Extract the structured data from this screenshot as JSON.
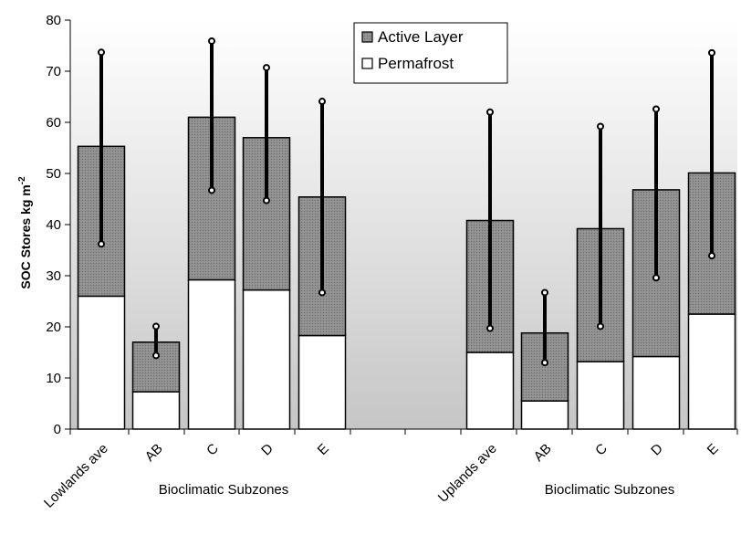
{
  "chart_data": {
    "type": "bar",
    "stacked": true,
    "ylabel": "SOC Stores kg m",
    "ylabel_sup": "-2",
    "ylim": [
      0,
      80
    ],
    "yticks": [
      0,
      10,
      20,
      30,
      40,
      50,
      60,
      70,
      80
    ],
    "group_label": "Bioclimatic Subzones",
    "categories": [
      "Lowlands ave",
      "AB",
      "C",
      "D",
      "E",
      "Uplands ave",
      "AB",
      "C",
      "D",
      "E"
    ],
    "series": [
      {
        "name": "Permafrost",
        "color": "#ffffff",
        "values": [
          26,
          7.3,
          29.2,
          27.2,
          18.3,
          15,
          5.5,
          13.2,
          14.2,
          22.5
        ]
      },
      {
        "name": "Active Layer",
        "color": "#8a8a8a",
        "values": [
          29.3,
          9.7,
          31.8,
          29.8,
          27.1,
          25.8,
          13.3,
          26,
          32.6,
          27.6
        ]
      }
    ],
    "error_bars": [
      {
        "low": 36.2,
        "high": 73.7
      },
      {
        "low": 14.4,
        "high": 20.1
      },
      {
        "low": 46.7,
        "high": 75.9
      },
      {
        "low": 44.7,
        "high": 70.7
      },
      {
        "low": 26.7,
        "high": 64.1
      },
      {
        "low": 19.7,
        "high": 62
      },
      {
        "low": 13,
        "high": 26.7
      },
      {
        "low": 20.1,
        "high": 59.2
      },
      {
        "low": 29.6,
        "high": 62.6
      },
      {
        "low": 33.9,
        "high": 73.6
      }
    ],
    "legend": {
      "position": "top-center",
      "entries": [
        "Active Layer",
        "Permafrost"
      ]
    },
    "grid": false
  }
}
